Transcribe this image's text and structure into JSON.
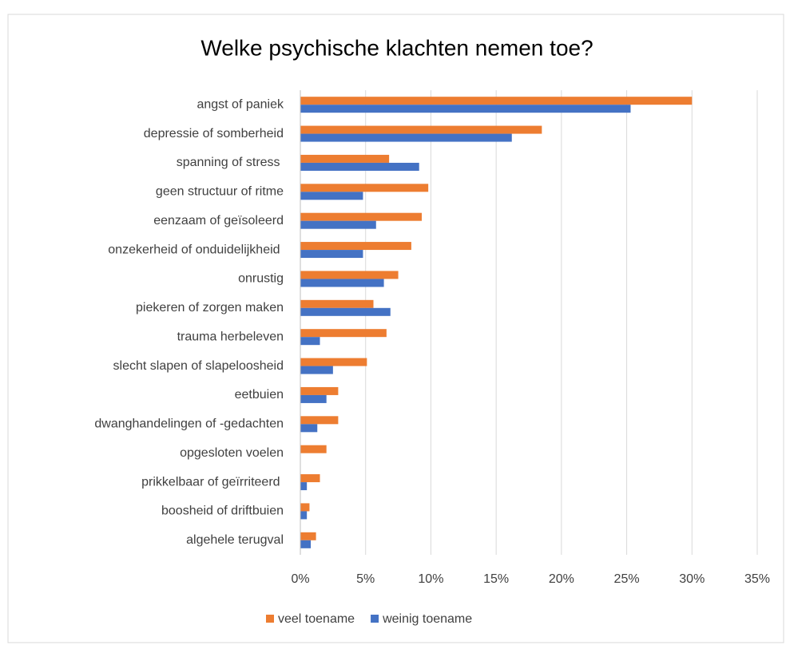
{
  "chart_data": {
    "type": "barh",
    "title": "Welke psychische klachten nemen toe?",
    "categories": [
      "angst of paniek",
      "depressie of somberheid",
      "spanning of stress ",
      "geen structuur of ritme",
      "eenzaam of geïsoleerd",
      "onzekerheid of onduidelijkheid ",
      "onrustig",
      "piekeren of zorgen maken",
      "trauma herbeleven",
      "slecht slapen of slapeloosheid",
      "eetbuien",
      "dwanghandelingen of -gedachten",
      "opgesloten voelen",
      "prikkelbaar of geïrriteerd ",
      "boosheid of driftbuien",
      "algehele terugval"
    ],
    "series": [
      {
        "name": "veel toename",
        "color": "#ED7D31",
        "values": [
          30,
          18.5,
          6.8,
          9.8,
          9.3,
          8.5,
          7.5,
          5.6,
          6.6,
          5.1,
          2.9,
          2.9,
          2.0,
          1.5,
          0.7,
          1.2
        ]
      },
      {
        "name": "weinig toename",
        "color": "#4472C4",
        "values": [
          25.3,
          16.2,
          9.1,
          4.8,
          5.8,
          4.8,
          6.4,
          6.9,
          1.5,
          2.5,
          2.0,
          1.3,
          0,
          0.5,
          0.5,
          0.8
        ]
      }
    ],
    "xlim": [
      0,
      35
    ],
    "xticks": [
      {
        "value": 0,
        "label": "0%"
      },
      {
        "value": 5,
        "label": "5%"
      },
      {
        "value": 10,
        "label": "10%"
      },
      {
        "value": 15,
        "label": "15%"
      },
      {
        "value": 20,
        "label": "20%"
      },
      {
        "value": 25,
        "label": "25%"
      },
      {
        "value": 30,
        "label": "30%"
      },
      {
        "value": 35,
        "label": "35%"
      }
    ],
    "grid": true,
    "legend": "bottom"
  }
}
